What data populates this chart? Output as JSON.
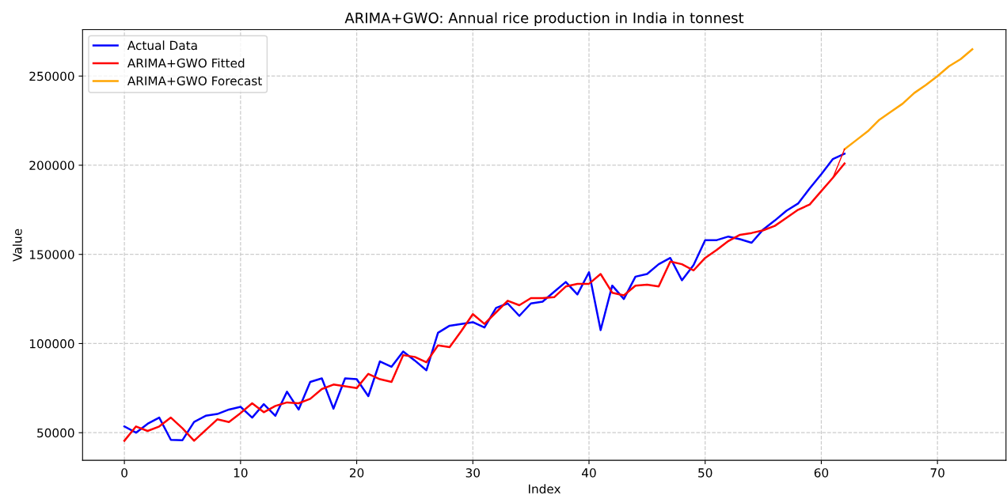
{
  "chart_data": {
    "type": "line",
    "title": "ARIMA+GWO: Annual rice production in India in tonnest",
    "xlabel": "Index",
    "ylabel": "Value",
    "x": [
      0,
      1,
      2,
      3,
      4,
      5,
      6,
      7,
      8,
      9,
      10,
      11,
      12,
      13,
      14,
      15,
      16,
      17,
      18,
      19,
      20,
      21,
      22,
      23,
      24,
      25,
      26,
      27,
      28,
      29,
      30,
      31,
      32,
      33,
      34,
      35,
      36,
      37,
      38,
      39,
      40,
      41,
      42,
      43,
      44,
      45,
      46,
      47,
      48,
      49,
      50,
      51,
      52,
      53,
      54,
      55,
      56,
      57,
      58,
      59,
      60,
      61,
      62
    ],
    "series": [
      {
        "name": "Actual Data",
        "color": "#0000ff",
        "values": [
          53500,
          50000,
          55000,
          58500,
          46000,
          45800,
          56000,
          59500,
          60500,
          63000,
          64500,
          58500,
          66000,
          59500,
          73000,
          63000,
          78500,
          80500,
          63500,
          80500,
          80000,
          70500,
          90000,
          87000,
          95500,
          90500,
          85000,
          106000,
          110000,
          111000,
          112000,
          109000,
          120000,
          122500,
          115500,
          122500,
          123500,
          129000,
          134500,
          127500,
          140000,
          107500,
          132500,
          125000,
          137500,
          139000,
          144500,
          148000,
          135500,
          144000,
          158000,
          158000,
          160000,
          158500,
          156500,
          164000,
          169000,
          174500,
          178500,
          187000,
          195000,
          203500,
          206500
        ]
      },
      {
        "name": "ARIMA+GWO Fitted",
        "color": "#ff0000",
        "values": [
          45500,
          53500,
          51000,
          53500,
          58500,
          52500,
          45500,
          51500,
          57500,
          56000,
          61000,
          66500,
          61500,
          65000,
          67000,
          66500,
          69000,
          74500,
          77000,
          76000,
          75000,
          83000,
          80000,
          78500,
          93500,
          92500,
          89500,
          99000,
          98000,
          107000,
          116500,
          111000,
          117500,
          124000,
          121500,
          125500,
          125500,
          126000,
          132000,
          133500,
          133500,
          139000,
          128500,
          127000,
          132500,
          133000,
          132000,
          146000,
          144500,
          141000,
          148000,
          152500,
          157500,
          161000,
          162000,
          163500,
          166000,
          170500,
          175000,
          178000,
          185500,
          193000,
          201000
        ]
      },
      {
        "name": "ARIMA+GWO Forecast",
        "color": "#ffa500",
        "x": [
          62,
          63,
          64,
          65,
          66,
          67,
          68,
          69,
          70,
          71,
          72,
          73
        ],
        "values": [
          209000,
          214000,
          219000,
          225500,
          230000,
          234500,
          240500,
          245000,
          250000,
          255500,
          259500,
          265000
        ]
      },
      {
        "color": "#ff0000",
        "x": [
          61,
          62
        ],
        "values": [
          193000,
          209000
        ]
      }
    ],
    "xlim": [
      -3.6,
      75.9
    ],
    "ylim": [
      34500,
      276000
    ],
    "xticks": [
      0,
      10,
      20,
      30,
      40,
      50,
      60,
      70
    ],
    "yticks": [
      50000,
      100000,
      150000,
      200000,
      250000
    ],
    "grid": true,
    "legend": "top left",
    "line_style": "solid",
    "marker": "none"
  }
}
